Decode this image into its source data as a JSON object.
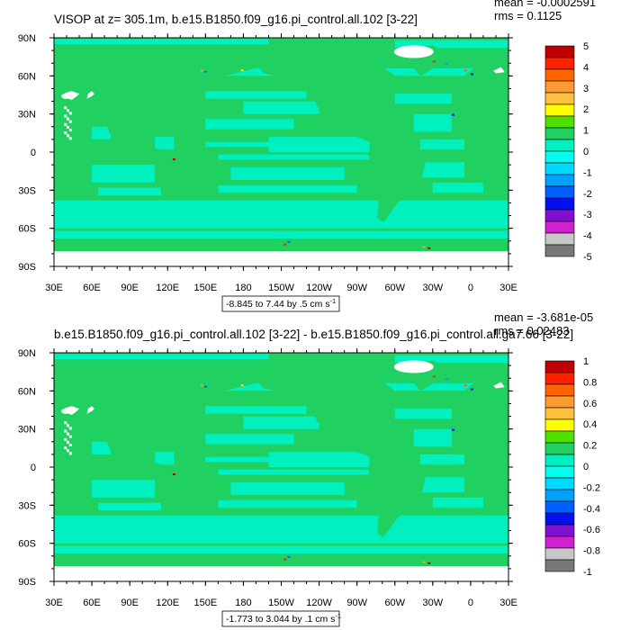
{
  "chart_data": [
    {
      "type": "heatmap",
      "title": "VISOP at z= 305.1m, b.e15.B1850.f09_g16.pi_control.all.102 [3-22]",
      "stats": {
        "mean": "mean = -0.0002591",
        "rms": "rms = 0.1125"
      },
      "x_ticks": [
        "30E",
        "60E",
        "90E",
        "120E",
        "150E",
        "180",
        "150W",
        "120W",
        "90W",
        "60W",
        "30W",
        "0",
        "30E"
      ],
      "y_ticks": [
        "90N",
        "60N",
        "30N",
        "0",
        "30S",
        "60S",
        "90S"
      ],
      "range_label": "-8.845 to 7.44 by .5 cm s",
      "range_exp": "-1",
      "colorbar_labels": [
        "5",
        "4",
        "3",
        "2",
        "1",
        "0",
        "-1",
        "-2",
        "-3",
        "-4",
        "-5"
      ],
      "colorbar_colors": [
        "#c00000",
        "#ff2000",
        "#ff6400",
        "#ff9a30",
        "#ffc040",
        "#ffff00",
        "#50e000",
        "#20d060",
        "#00f0c0",
        "#00ffee",
        "#00d8ff",
        "#00a0ff",
        "#0060ff",
        "#0010f0",
        "#8010d0",
        "#d020d0",
        "#c8c8c8",
        "#787878"
      ]
    },
    {
      "type": "heatmap",
      "title": "b.e15.B1850.f09_g16.pi_control.all.102 [3-22] - b.e15.B1850.f09_g16.pi_control.all.ga7.66 [3-22]",
      "stats": {
        "mean": "mean = -3.681e-05",
        "rms": "rms = 0.02483"
      },
      "x_ticks": [
        "30E",
        "60E",
        "90E",
        "120E",
        "150E",
        "180",
        "150W",
        "120W",
        "90W",
        "60W",
        "30W",
        "0",
        "30E"
      ],
      "y_ticks": [
        "90N",
        "60N",
        "30N",
        "0",
        "30S",
        "60S",
        "90S"
      ],
      "range_label": "-1.773 to 3.044 by .1 cm s",
      "range_exp": "-1",
      "colorbar_labels": [
        "1",
        "0.8",
        "0.6",
        "0.4",
        "0.2",
        "0",
        "-0.2",
        "-0.4",
        "-0.6",
        "-0.8",
        "-1"
      ],
      "colorbar_colors": [
        "#c00000",
        "#ff2000",
        "#ff6400",
        "#ff9a30",
        "#ffc040",
        "#ffff00",
        "#50e000",
        "#20d060",
        "#00f0c0",
        "#00ffee",
        "#00d8ff",
        "#00a0ff",
        "#0060ff",
        "#0010f0",
        "#8010d0",
        "#d020d0",
        "#c8c8c8",
        "#787878"
      ]
    }
  ],
  "colors": {
    "ocean_main": "#20d060",
    "ocean_band": "#00f0c0",
    "land": "#ffffff"
  }
}
